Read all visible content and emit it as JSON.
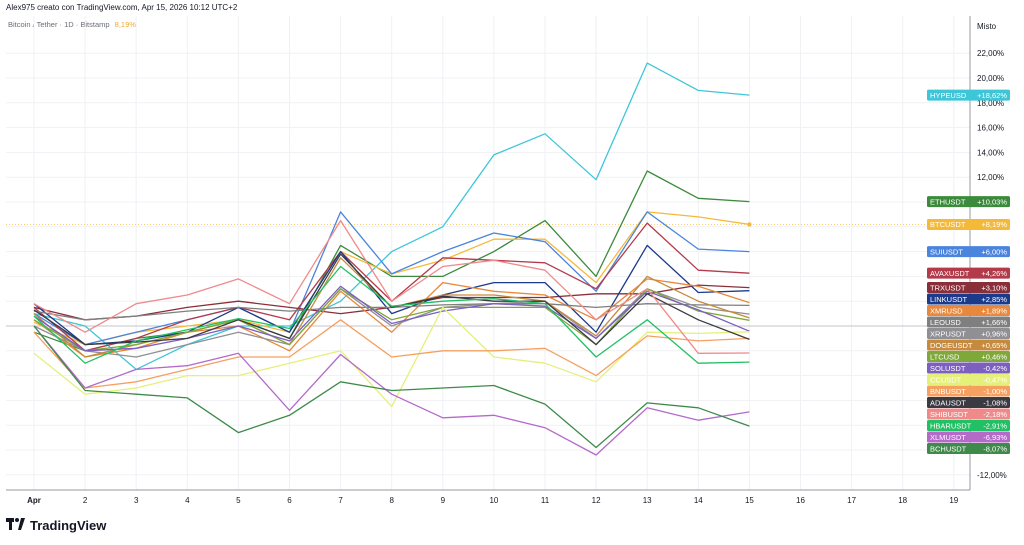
{
  "header": {
    "text": "Alex975 creato con TradingView.com, Apr 15, 2026 10:12 UTC+2"
  },
  "legend": {
    "symbol": "Bitcoin / Tether · 1D · Bitstamp",
    "value": "8,19%"
  },
  "scale_label": "Misto",
  "footer": {
    "brand": "TradingView"
  },
  "chart_data": {
    "type": "line",
    "title": "Bitcoin / Tether · 1D · Bitstamp",
    "x": [
      "Apr",
      "2",
      "3",
      "4",
      "5",
      "6",
      "7",
      "8",
      "9",
      "10",
      "11",
      "12",
      "13",
      "14",
      "15"
    ],
    "x_axis_ticks": [
      "Apr",
      "2",
      "3",
      "4",
      "5",
      "6",
      "7",
      "8",
      "9",
      "10",
      "11",
      "12",
      "13",
      "14",
      "15",
      "16",
      "17",
      "18",
      "19"
    ],
    "y_axis_ticks": [
      "22,00%",
      "20,00%",
      "18,00%",
      "16,00%",
      "14,00%",
      "12,00%",
      "10,00%",
      "-10,00%",
      "-12,00%"
    ],
    "ylim": [
      -13,
      24
    ],
    "series": [
      {
        "name": "HYPEUSD",
        "label": "+18,62%",
        "color": "#3ec6d8",
        "values": [
          1.0,
          0,
          -3.5,
          -1.5,
          0,
          0,
          2,
          6,
          8,
          13.8,
          15.5,
          11.8,
          21.2,
          19,
          18.62
        ]
      },
      {
        "name": "ETHUSDT",
        "label": "+10,03%",
        "color": "#3c8a3c",
        "values": [
          -0.5,
          -2,
          -1,
          -0.5,
          0.5,
          -1,
          6.5,
          4,
          4,
          6,
          8.5,
          4,
          12.5,
          10.3,
          10.03
        ]
      },
      {
        "name": "BTCUSDT",
        "label": "+8,19%",
        "color": "#f5b93a",
        "values": [
          0.3,
          -1.5,
          -0.5,
          0,
          0.5,
          -0.5,
          6,
          4.2,
          5.3,
          7,
          7,
          3.5,
          9.2,
          8.8,
          8.19
        ]
      },
      {
        "name": "SUIUSDT",
        "label": "+6,00%",
        "color": "#4a84dc",
        "values": [
          1,
          -1.5,
          -0.5,
          0.5,
          1.5,
          -0.5,
          9.2,
          4.2,
          6,
          7.5,
          6.8,
          2.8,
          9.2,
          6.2,
          6.0
        ]
      },
      {
        "name": "AVAXUSDT",
        "label": "+4,26%",
        "color": "#b33a4a",
        "values": [
          1.5,
          -2,
          -1,
          0.5,
          1.5,
          0.5,
          6,
          2,
          5.5,
          5.3,
          5.1,
          3,
          8.3,
          4.5,
          4.26
        ]
      },
      {
        "name": "TRXUSDT",
        "label": "+3,10%",
        "color": "#8a2e3a",
        "values": [
          1.5,
          0.5,
          0.8,
          1.5,
          2,
          1.5,
          1,
          1.5,
          2.3,
          2.3,
          2.3,
          2.6,
          2.6,
          3.3,
          3.1
        ]
      },
      {
        "name": "LINKUSDT",
        "label": "+2,85%",
        "color": "#1c3a8a",
        "values": [
          1.8,
          -1.5,
          -1.2,
          -0.5,
          1.5,
          -0.5,
          6,
          1,
          2.5,
          3.5,
          3.5,
          -0.5,
          6.5,
          2.7,
          2.85
        ]
      },
      {
        "name": "XMRUSD",
        "label": "+1,89%",
        "color": "#e8883c",
        "values": [
          0.5,
          -2.5,
          -1.8,
          -0.5,
          0,
          -2,
          2.8,
          -0.5,
          3.5,
          2.8,
          2.5,
          0.5,
          3.8,
          3.2,
          1.89
        ]
      },
      {
        "name": "LEOUSD",
        "label": "+1,66%",
        "color": "#7f7f7f",
        "values": [
          1.2,
          0.5,
          0.8,
          1.2,
          1.5,
          1.2,
          1.5,
          1.5,
          1.7,
          1.8,
          1.8,
          1.5,
          1.8,
          1.7,
          1.66
        ]
      },
      {
        "name": "XRPUSDT",
        "label": "+0,96%",
        "color": "#8f8f94",
        "values": [
          0,
          -2,
          -2.5,
          -1.5,
          -0.5,
          -1.5,
          3,
          0,
          1.5,
          1.8,
          2,
          -1,
          3,
          1.5,
          0.96
        ]
      },
      {
        "name": "DOGEUSDT",
        "label": "+0,65%",
        "color": "#c68a3c",
        "values": [
          1,
          -2.5,
          -1.5,
          -0.5,
          0.5,
          -1.5,
          5.5,
          1.5,
          2.5,
          2.5,
          2,
          -0.8,
          4,
          2,
          0.65
        ]
      },
      {
        "name": "LTCUSD",
        "label": "+0,46%",
        "color": "#7fa83a",
        "values": [
          0.5,
          -2,
          -1.5,
          -0.5,
          0.5,
          -1.5,
          3,
          0.5,
          1.5,
          1.5,
          1.5,
          -1.5,
          3,
          1.2,
          0.46
        ]
      },
      {
        "name": "SOLUSDT",
        "label": "-0,42%",
        "color": "#7d5fbf",
        "values": [
          0.8,
          -2,
          -1.8,
          -1,
          0,
          -1.2,
          3.2,
          0.2,
          1.2,
          1.8,
          1.6,
          -1,
          2.8,
          1.3,
          -0.42
        ]
      },
      {
        "name": "CCUSDT",
        "label": "-0,47%",
        "color": "#e5f07a",
        "values": [
          -2.2,
          -5.5,
          -5,
          -4,
          -4,
          -3,
          -2,
          -6.5,
          1.5,
          -2.5,
          -3,
          -4.5,
          -0.5,
          -0.6,
          -0.47
        ]
      },
      {
        "name": "BNBUSDT",
        "label": "-1,00%",
        "color": "#f5a060",
        "values": [
          -0.5,
          -5,
          -4.5,
          -3.5,
          -2.5,
          -2.5,
          0.5,
          -2.5,
          -2,
          -2,
          -1.8,
          -4,
          -0.8,
          -1.2,
          -1.0
        ]
      },
      {
        "name": "ADAUSDT",
        "label": "-1,08%",
        "color": "#3a3a42",
        "values": [
          1.3,
          -1.5,
          -1.3,
          -1,
          0.5,
          -1,
          5.8,
          1.5,
          2.4,
          2,
          2,
          -1.5,
          2.6,
          0.5,
          -1.08
        ]
      },
      {
        "name": "SHIBUSDT",
        "label": "-2,18%",
        "color": "#f08a8a",
        "values": [
          1.8,
          -0.5,
          1.8,
          2.5,
          3.8,
          1.8,
          8.5,
          2,
          4.8,
          5.3,
          4.5,
          0.5,
          3,
          -2.2,
          -2.18
        ]
      },
      {
        "name": "HBARUSDT",
        "label": "-2,91%",
        "color": "#22c064",
        "values": [
          0.8,
          -3,
          -1.2,
          -0.3,
          0.6,
          -0.2,
          4.8,
          1.6,
          2,
          2.2,
          1.8,
          -2.5,
          0.5,
          -3,
          -2.91
        ]
      },
      {
        "name": "XLMUSDT",
        "label": "-6,93%",
        "color": "#b36ac9",
        "values": [
          0,
          -5,
          -3.5,
          -3.2,
          -2.2,
          -6.8,
          -2.3,
          -5.5,
          -7.4,
          -7.2,
          -8.2,
          -10.4,
          -6.6,
          -7.6,
          -6.93
        ]
      },
      {
        "name": "BCHUSDT",
        "label": "-8,07%",
        "color": "#3e8a4a",
        "values": [
          0,
          -5.2,
          -5.5,
          -5.8,
          -8.6,
          -7.2,
          -4.5,
          -5.2,
          -5,
          -4.8,
          -6.3,
          -9.8,
          -6.2,
          -6.6,
          -8.07
        ]
      }
    ]
  }
}
